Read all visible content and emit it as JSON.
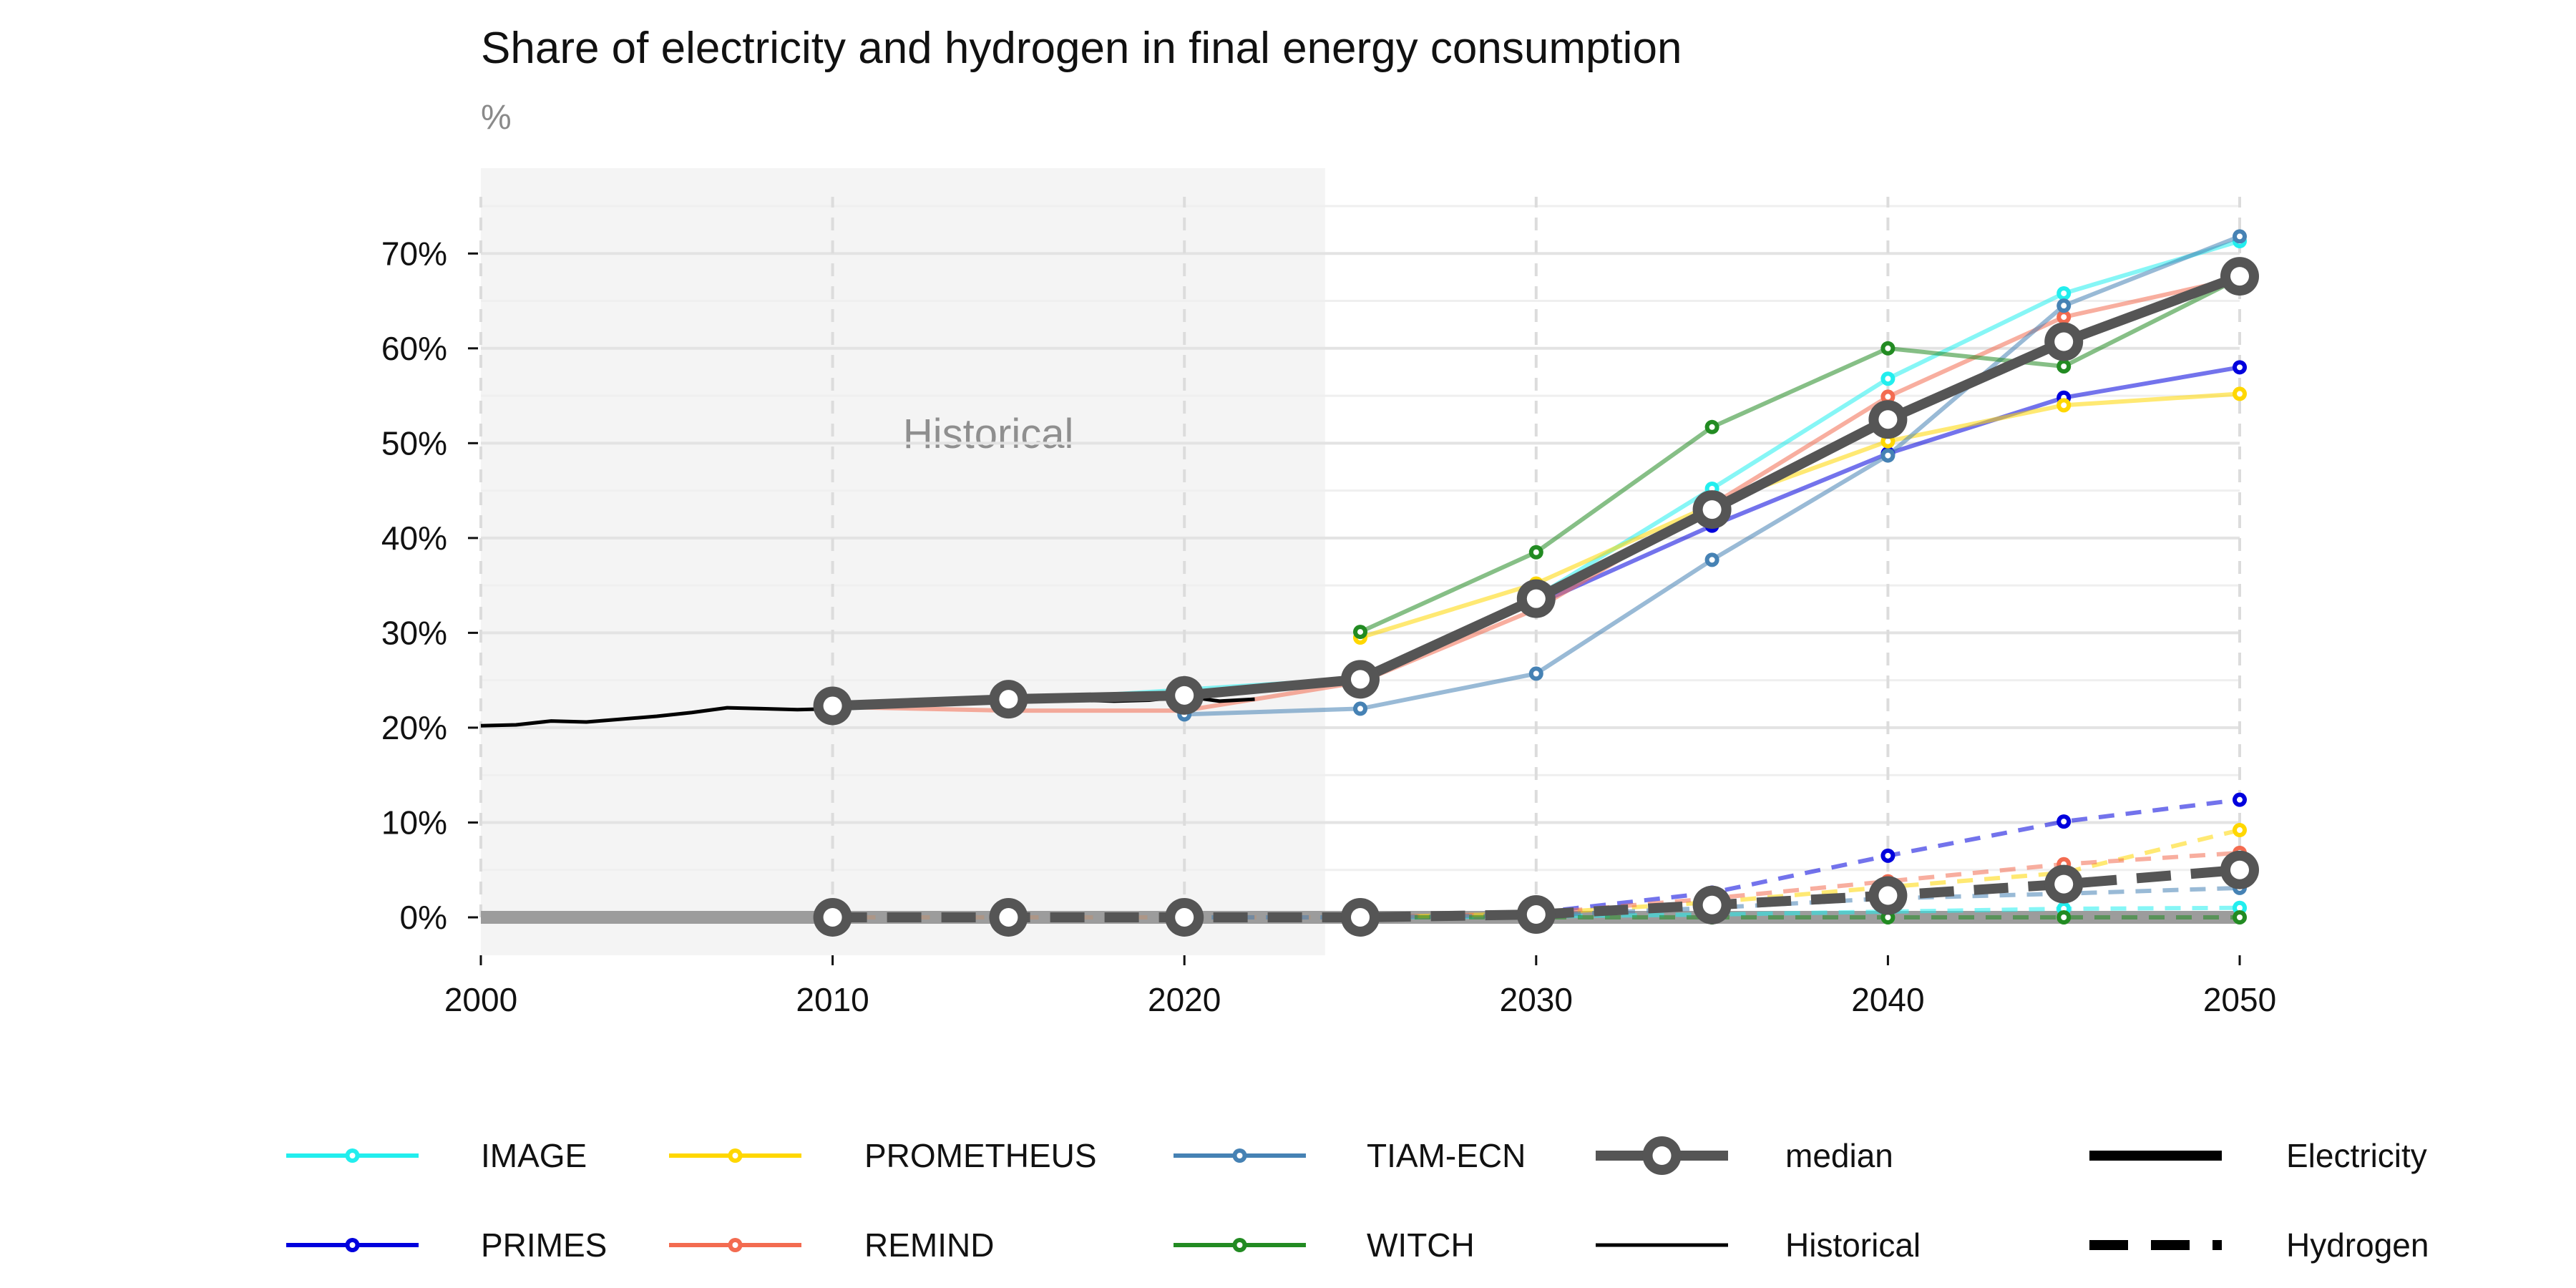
{
  "chart_data": {
    "type": "line",
    "title": "Share of electricity and hydrogen in final energy consumption",
    "unit_label": "%",
    "historical_label": "Historical",
    "xlim": [
      2000,
      2050
    ],
    "ylim": [
      -4,
      79
    ],
    "x_ticks": [
      2000,
      2010,
      2020,
      2030,
      2040,
      2050
    ],
    "y_ticks": [
      0,
      10,
      20,
      30,
      40,
      50,
      60,
      70
    ],
    "y_tick_labels": [
      "0%",
      "10%",
      "20%",
      "30%",
      "40%",
      "50%",
      "60%",
      "70%"
    ],
    "historical_shade_range": [
      2000,
      2024
    ],
    "grid": true,
    "legend_position": "bottom",
    "colors": {
      "IMAGE": "#22eeee",
      "PRIMES": "#0000dd",
      "PROMETHEUS": "#ffd700",
      "REMIND": "#f36b50",
      "TIAM-ECN": "#4682b4",
      "WITCH": "#228b22",
      "median": "#555555",
      "Historical": "#000000"
    },
    "x": [
      2010,
      2015,
      2020,
      2025,
      2030,
      2035,
      2040,
      2045,
      2050
    ],
    "series": [
      {
        "name": "IMAGE",
        "carrier": "Electricity",
        "values": [
          22.0,
          22.8,
          24.0,
          25.2,
          33.8,
          45.2,
          56.8,
          65.8,
          71.3
        ]
      },
      {
        "name": "PRIMES",
        "carrier": "Electricity",
        "values": [
          null,
          null,
          null,
          null,
          33.0,
          41.3,
          48.9,
          54.8,
          58.0
        ]
      },
      {
        "name": "PROMETHEUS",
        "carrier": "Electricity",
        "values": [
          null,
          null,
          null,
          29.5,
          35.2,
          43.5,
          50.2,
          54.0,
          55.2
        ]
      },
      {
        "name": "REMIND",
        "carrier": "Electricity",
        "values": [
          22.2,
          21.8,
          21.8,
          24.8,
          32.5,
          43.5,
          54.9,
          63.3,
          67.4
        ]
      },
      {
        "name": "TIAM-ECN",
        "carrier": "Electricity",
        "values": [
          null,
          null,
          21.4,
          22.0,
          25.7,
          37.7,
          48.7,
          64.5,
          71.8
        ]
      },
      {
        "name": "WITCH",
        "carrier": "Electricity",
        "values": [
          null,
          null,
          null,
          30.1,
          38.5,
          51.7,
          60.0,
          58.1,
          67.4
        ]
      },
      {
        "name": "median",
        "carrier": "Electricity",
        "values": [
          22.3,
          23.0,
          23.4,
          25.1,
          33.6,
          43.0,
          52.5,
          60.7,
          67.6
        ]
      },
      {
        "name": "IMAGE",
        "carrier": "Hydrogen",
        "values": [
          0.0,
          0.0,
          0.0,
          0.0,
          0.1,
          0.3,
          0.6,
          0.9,
          1.0
        ]
      },
      {
        "name": "PRIMES",
        "carrier": "Hydrogen",
        "values": [
          null,
          null,
          null,
          null,
          0.5,
          2.6,
          6.5,
          10.1,
          12.4
        ]
      },
      {
        "name": "PROMETHEUS",
        "carrier": "Hydrogen",
        "values": [
          null,
          null,
          null,
          0.0,
          0.4,
          1.6,
          3.2,
          4.7,
          9.2
        ]
      },
      {
        "name": "REMIND",
        "carrier": "Hydrogen",
        "values": [
          0.0,
          0.0,
          0.0,
          0.0,
          0.4,
          2.0,
          3.8,
          5.6,
          6.8
        ]
      },
      {
        "name": "TIAM-ECN",
        "carrier": "Hydrogen",
        "values": [
          null,
          null,
          0.0,
          0.0,
          0.2,
          1.0,
          2.0,
          2.5,
          3.1
        ]
      },
      {
        "name": "WITCH",
        "carrier": "Hydrogen",
        "values": [
          null,
          null,
          null,
          0.0,
          0.0,
          0.0,
          0.0,
          0.0,
          0.0
        ]
      },
      {
        "name": "median",
        "carrier": "Hydrogen",
        "values": [
          0.0,
          0.0,
          0.0,
          0.0,
          0.3,
          1.3,
          2.3,
          3.5,
          5.0
        ]
      }
    ],
    "historical": {
      "name": "Historical",
      "x": [
        2000,
        2001,
        2002,
        2003,
        2004,
        2005,
        2006,
        2007,
        2008,
        2009,
        2010,
        2011,
        2012,
        2013,
        2014,
        2015,
        2016,
        2017,
        2018,
        2019,
        2020,
        2021,
        2022
      ],
      "electricity": [
        20.2,
        20.3,
        20.7,
        20.6,
        20.9,
        21.2,
        21.6,
        22.1,
        22.0,
        21.9,
        22.0,
        22.5,
        22.6,
        22.7,
        22.9,
        22.9,
        23.0,
        22.9,
        22.8,
        22.9,
        23.3,
        22.8,
        23.0
      ],
      "hydrogen": [
        0.0,
        0.0,
        0.0,
        0.0,
        0.0,
        0.0,
        0.0,
        0.0,
        0.0,
        0.0,
        0.0,
        0.0,
        0.0,
        0.0,
        0.0,
        0.0,
        0.0,
        0.0,
        0.0,
        0.0,
        0.0,
        0.0,
        0.0
      ]
    },
    "legend": {
      "models": [
        "IMAGE",
        "PROMETHEUS",
        "TIAM-ECN",
        "median",
        "PRIMES",
        "REMIND",
        "WITCH",
        "Historical"
      ],
      "carriers": [
        "Electricity",
        "Hydrogen"
      ]
    }
  }
}
